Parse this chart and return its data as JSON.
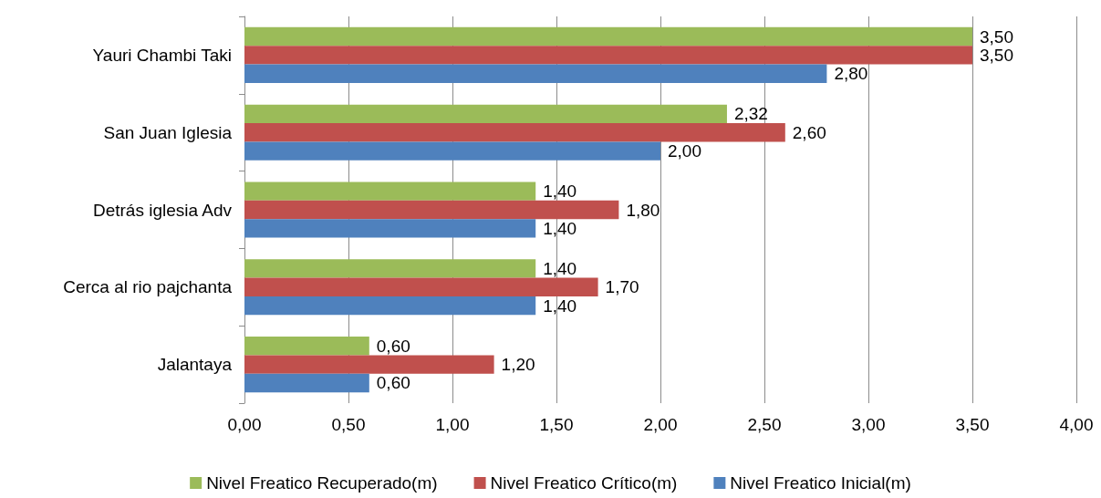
{
  "chart_data": {
    "type": "bar",
    "orientation": "horizontal",
    "categories": [
      "Yauri Chambi Taki",
      "San Juan Iglesia",
      "Detrás iglesia Adv",
      "Cerca al rio pajchanta",
      "Jalantaya"
    ],
    "series": [
      {
        "name": "Nivel Freatico Recuperado(m)",
        "color": "#9bbb59",
        "values": [
          3.5,
          2.32,
          1.4,
          1.4,
          0.6
        ],
        "value_labels": [
          "3,50",
          "2,32",
          "1,40",
          "1,40",
          "0,60"
        ]
      },
      {
        "name": "Nivel Freatico Crítico(m)",
        "color": "#c0504d",
        "values": [
          3.5,
          2.6,
          1.8,
          1.7,
          1.2
        ],
        "value_labels": [
          "3,50",
          "2,60",
          "1,80",
          "1,70",
          "1,20"
        ]
      },
      {
        "name": "Nivel Freatico Inicial(m)",
        "color": "#4f81bd",
        "values": [
          2.8,
          2.0,
          1.4,
          1.4,
          0.6
        ],
        "value_labels": [
          "2,80",
          "2,00",
          "1,40",
          "1,40",
          "0,60"
        ]
      }
    ],
    "xlim": [
      0,
      4
    ],
    "xticks": [
      {
        "value": 0,
        "label": "0,00"
      },
      {
        "value": 0.5,
        "label": "0,50"
      },
      {
        "value": 1,
        "label": "1,00"
      },
      {
        "value": 1.5,
        "label": "1,50"
      },
      {
        "value": 2,
        "label": "2,00"
      },
      {
        "value": 2.5,
        "label": "2,50"
      },
      {
        "value": 3,
        "label": "3,00"
      },
      {
        "value": 3.5,
        "label": "3,50"
      },
      {
        "value": 4,
        "label": "4,00"
      }
    ],
    "grid": "x",
    "legend": "bottom"
  }
}
